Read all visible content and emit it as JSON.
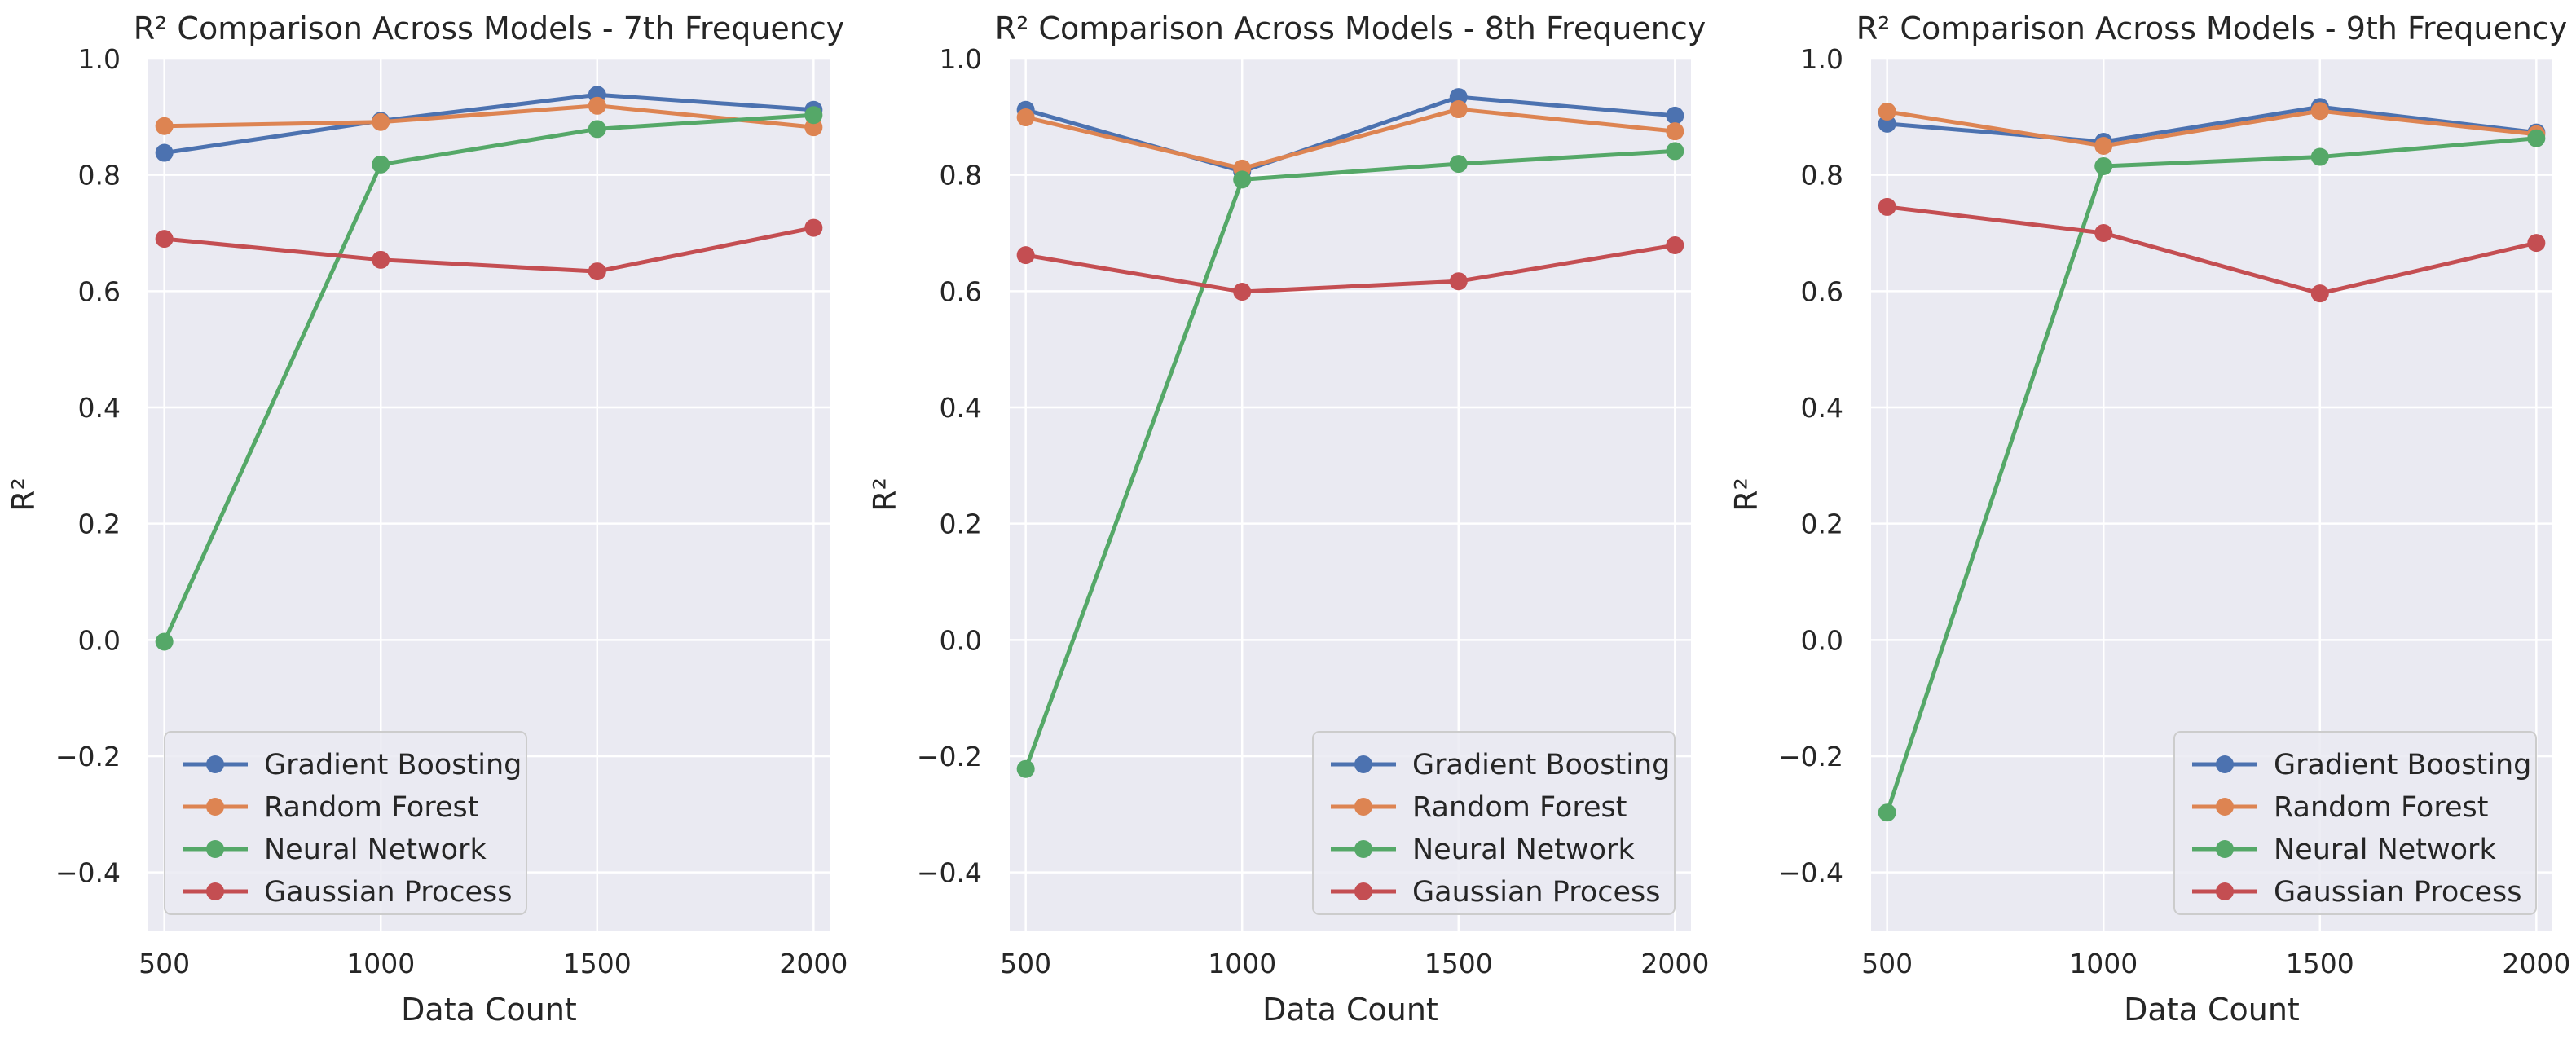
{
  "chart_data": [
    {
      "type": "line",
      "title": "R² Comparison Across Models - 7th Frequency",
      "xlabel": "Data Count",
      "ylabel": "R²",
      "x": [
        500,
        1000,
        1500,
        2000
      ],
      "xticks": [
        "500",
        "1000",
        "1500",
        "2000"
      ],
      "ylim": [
        -0.5,
        1.0
      ],
      "yticks": [
        "−0.4",
        "−0.2",
        "0.0",
        "0.2",
        "0.4",
        "0.6",
        "0.8",
        "1.0"
      ],
      "legend_position": "lower-left",
      "series": [
        {
          "name": "Gradient Boosting",
          "color": "#4c72b0",
          "values": [
            0.838,
            0.893,
            0.938,
            0.912
          ]
        },
        {
          "name": "Random Forest",
          "color": "#dd8452",
          "values": [
            0.884,
            0.891,
            0.919,
            0.882
          ]
        },
        {
          "name": "Neural Network",
          "color": "#55a868",
          "values": [
            -0.003,
            0.818,
            0.879,
            0.903
          ]
        },
        {
          "name": "Gaussian Process",
          "color": "#c44e52",
          "values": [
            0.69,
            0.654,
            0.634,
            0.709
          ]
        }
      ]
    },
    {
      "type": "line",
      "title": "R² Comparison Across Models - 8th Frequency",
      "xlabel": "Data Count",
      "ylabel": "R²",
      "x": [
        500,
        1000,
        1500,
        2000
      ],
      "xticks": [
        "500",
        "1000",
        "1500",
        "2000"
      ],
      "ylim": [
        -0.5,
        1.0
      ],
      "yticks": [
        "−0.4",
        "−0.2",
        "0.0",
        "0.2",
        "0.4",
        "0.6",
        "0.8",
        "1.0"
      ],
      "legend_position": "lower-right",
      "series": [
        {
          "name": "Gradient Boosting",
          "color": "#4c72b0",
          "values": [
            0.912,
            0.806,
            0.934,
            0.902
          ]
        },
        {
          "name": "Random Forest",
          "color": "#dd8452",
          "values": [
            0.899,
            0.811,
            0.913,
            0.875
          ]
        },
        {
          "name": "Neural Network",
          "color": "#55a868",
          "values": [
            -0.222,
            0.792,
            0.819,
            0.841
          ]
        },
        {
          "name": "Gaussian Process",
          "color": "#c44e52",
          "values": [
            0.662,
            0.599,
            0.617,
            0.679
          ]
        }
      ]
    },
    {
      "type": "line",
      "title": "R² Comparison Across Models - 9th Frequency",
      "xlabel": "Data Count",
      "ylabel": "R²",
      "x": [
        500,
        1000,
        1500,
        2000
      ],
      "xticks": [
        "500",
        "1000",
        "1500",
        "2000"
      ],
      "ylim": [
        -0.5,
        1.0
      ],
      "yticks": [
        "−0.4",
        "−0.2",
        "0.0",
        "0.2",
        "0.4",
        "0.6",
        "0.8",
        "1.0"
      ],
      "legend_position": "lower-right",
      "series": [
        {
          "name": "Gradient Boosting",
          "color": "#4c72b0",
          "values": [
            0.888,
            0.857,
            0.917,
            0.873
          ]
        },
        {
          "name": "Random Forest",
          "color": "#dd8452",
          "values": [
            0.909,
            0.85,
            0.91,
            0.87
          ]
        },
        {
          "name": "Neural Network",
          "color": "#55a868",
          "values": [
            -0.297,
            0.815,
            0.831,
            0.863
          ]
        },
        {
          "name": "Gaussian Process",
          "color": "#c44e52",
          "values": [
            0.745,
            0.7,
            0.596,
            0.683
          ]
        }
      ]
    }
  ]
}
